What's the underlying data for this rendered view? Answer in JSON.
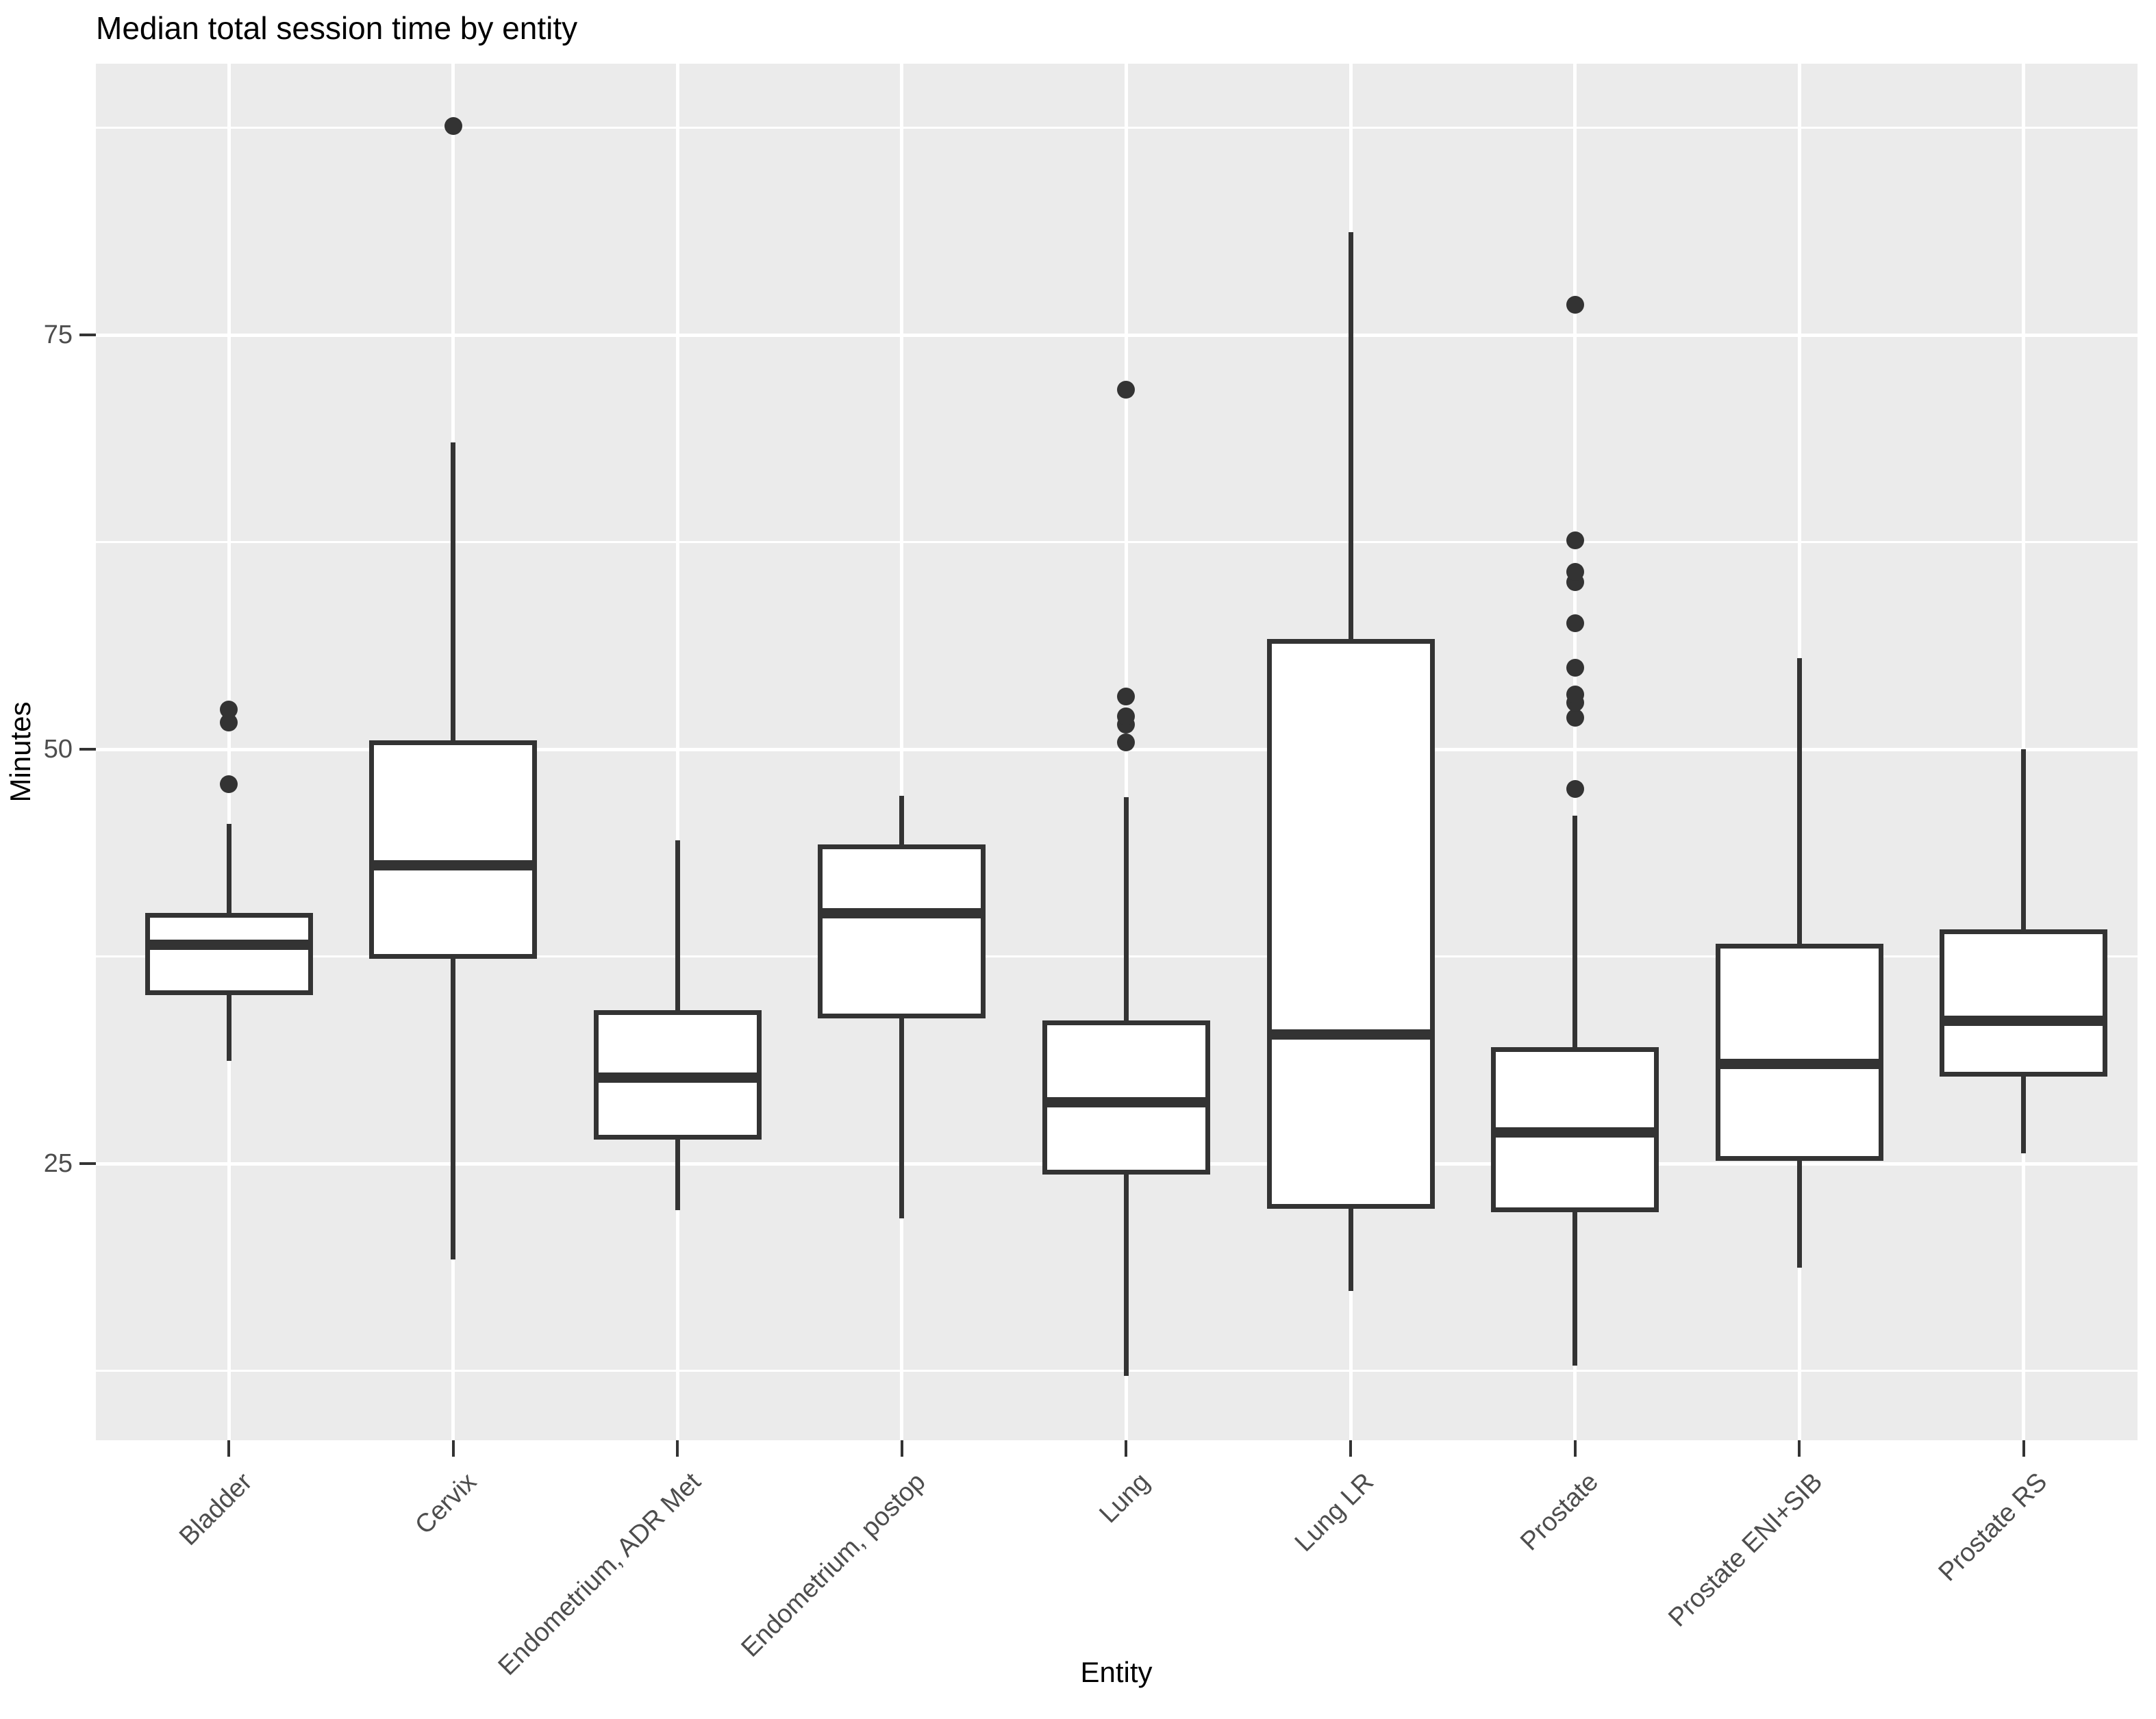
{
  "title": "Median total session time by entity",
  "axes": {
    "x_label": "Entity",
    "y_label": "Minutes"
  },
  "colors": {
    "panel_background": "#EBEBEB",
    "gridline": "#FFFFFF",
    "box_stroke": "#333333",
    "box_fill": "#FFFFFF",
    "outlier_dot": "#333333",
    "tick_label": "#4D4D4D",
    "axis_title": "#000000",
    "title": "#000000"
  },
  "chart_data": {
    "type": "boxplot",
    "title": "Median total session time by entity",
    "xlabel": "Entity",
    "ylabel": "Minutes",
    "ylim": [
      8.3,
      91.4
    ],
    "y_ticks": [
      75,
      50,
      25
    ],
    "y_minor_gridlines": [
      87.5,
      62.5,
      37.5,
      12.5
    ],
    "grid": "horizontal major and minor white lines, vertical major white line per category",
    "legend": "none",
    "categories": [
      "Bladder",
      "Cervix",
      "Endometrium, ADR Met",
      "Endometrium, postop",
      "Lung",
      "Lung LR",
      "Prostate",
      "Prostate ENI+SIB",
      "Prostate RS"
    ],
    "series": [
      {
        "name": "Bladder",
        "whisker_low": 31.2,
        "q1": 35.3,
        "median": 38.2,
        "q3": 40.0,
        "whisker_high": 45.5,
        "outliers": [
          47.9,
          51.6,
          52.4
        ]
      },
      {
        "name": "Cervix",
        "whisker_low": 19.2,
        "q1": 37.5,
        "median": 43.0,
        "q3": 50.4,
        "whisker_high": 68.5,
        "outliers": [
          87.6
        ]
      },
      {
        "name": "Endometrium, ADR Met",
        "whisker_low": 22.2,
        "q1": 26.6,
        "median": 30.2,
        "q3": 34.1,
        "whisker_high": 44.5,
        "outliers": []
      },
      {
        "name": "Endometrium, postop",
        "whisker_low": 21.7,
        "q1": 33.9,
        "median": 40.1,
        "q3": 44.1,
        "whisker_high": 47.2,
        "outliers": []
      },
      {
        "name": "Lung",
        "whisker_low": 12.2,
        "q1": 24.5,
        "median": 28.7,
        "q3": 33.5,
        "whisker_high": 47.1,
        "outliers": [
          50.4,
          51.5,
          52.0,
          53.2,
          71.7
        ]
      },
      {
        "name": "Lung LR",
        "whisker_low": 17.3,
        "q1": 22.4,
        "median": 32.8,
        "q3": 56.5,
        "whisker_high": 81.2,
        "outliers": []
      },
      {
        "name": "Prostate",
        "whisker_low": 12.8,
        "q1": 22.2,
        "median": 26.9,
        "q3": 31.9,
        "whisker_high": 46.0,
        "outliers": [
          47.6,
          51.9,
          52.8,
          53.3,
          54.9,
          57.6,
          60.1,
          60.7,
          62.6,
          76.8
        ]
      },
      {
        "name": "Prostate ENI+SIB",
        "whisker_low": 18.7,
        "q1": 25.3,
        "median": 31.0,
        "q3": 38.1,
        "whisker_high": 55.5,
        "outliers": []
      },
      {
        "name": "Prostate RS",
        "whisker_low": 25.6,
        "q1": 30.4,
        "median": 33.6,
        "q3": 39.0,
        "whisker_high": 50.0,
        "outliers": []
      }
    ]
  }
}
